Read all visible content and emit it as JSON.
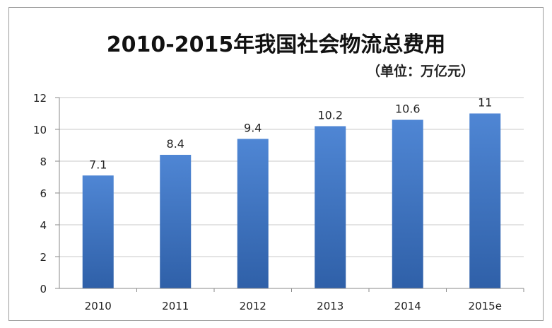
{
  "chart_data": {
    "type": "bar",
    "title": "2010-2015年我国社会物流总费用",
    "subtitle": "（单位：万亿元）",
    "categories": [
      "2010",
      "2011",
      "2012",
      "2013",
      "2014",
      "2015e"
    ],
    "values": [
      7.1,
      8.4,
      9.4,
      10.2,
      10.6,
      11
    ],
    "data_labels": [
      "7.1",
      "8.4",
      "9.4",
      "10.2",
      "10.6",
      "11"
    ],
    "ylim": [
      0,
      12
    ],
    "yticks": [
      "0",
      "2",
      "4",
      "6",
      "8",
      "10",
      "12"
    ],
    "xlabel": "",
    "ylabel": "",
    "grid": true,
    "legend": "none",
    "colors": {
      "bar_top": "#4f86d4",
      "bar_bottom": "#2f60a8",
      "grid": "#c8c8c8",
      "axis": "#8a8a8a",
      "text": "#222222"
    }
  }
}
